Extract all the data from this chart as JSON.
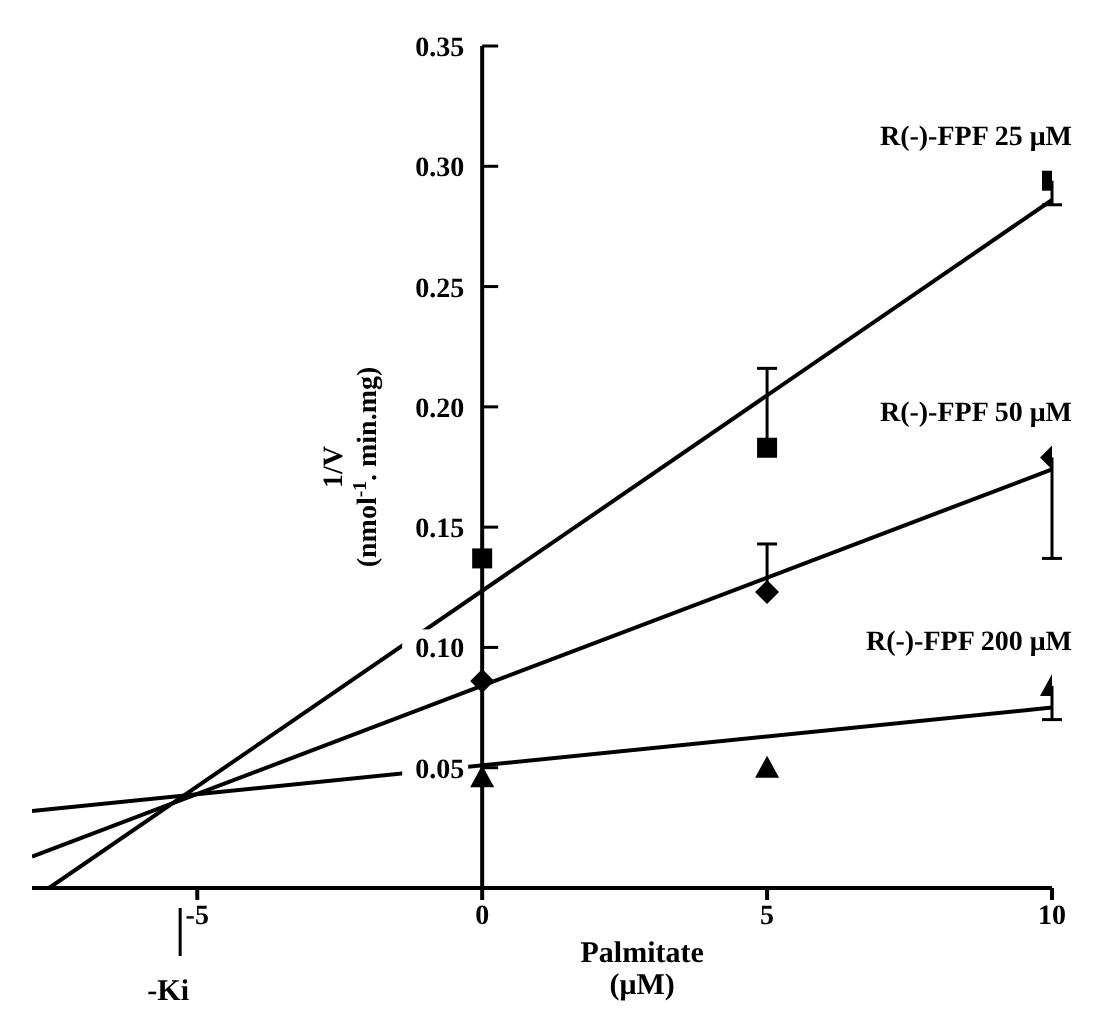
{
  "chart_data": {
    "type": "scatter",
    "xlabel": "Palmitate (μM)",
    "ylabel": "1/V (nmol$^{-1}$. min.mg)",
    "xlim": [
      -7.9,
      10
    ],
    "xticks": [
      -5,
      0,
      5,
      10
    ],
    "ylim": [
      0,
      0.35
    ],
    "yticks": [
      0.05,
      {
        "value": 0.1,
        "label": "0.10"
      },
      0.15,
      {
        "value": 0.2,
        "label": "0.20"
      },
      0.25,
      {
        "value": 0.3,
        "label": "0.30"
      },
      0.35
    ],
    "series": [
      {
        "name": "R(-)-FPF 25 μM",
        "color": "#000000",
        "marker": "square",
        "x": [
          0,
          5,
          10
        ],
        "values": [
          0.137,
          0.183,
          0.294
        ],
        "errors": [
          null,
          [
            0.183,
            0.216
          ],
          [
            0.284,
            0.294
          ]
        ]
      },
      {
        "name": "R(-)-FPF 50 μM",
        "color": "#000000",
        "marker": "diamond",
        "x": [
          0,
          5,
          10
        ],
        "values": [
          0.086,
          0.123,
          0.179
        ],
        "errors": [
          null,
          [
            0.123,
            0.143
          ],
          [
            0.137,
            0.179
          ]
        ]
      },
      {
        "name": "R(-)-FPF 200 μM",
        "color": "#000000",
        "marker": "triangle",
        "x": [
          0,
          5,
          10
        ],
        "values": [
          0.046,
          0.05,
          0.084
        ],
        "errors": [
          null,
          null,
          [
            0.07,
            0.084
          ]
        ]
      },
      {
        "type": "line",
        "color": "#000000",
        "marker": "none",
        "x": [
          -7.6,
          10
        ],
        "values": [
          0,
          0.286
        ]
      },
      {
        "type": "line",
        "color": "#000000",
        "marker": "none",
        "x": [
          -7.9,
          10
        ],
        "values": [
          0.013,
          0.174
        ]
      },
      {
        "type": "line",
        "color": "#000000",
        "marker": "none",
        "x": [
          -7.9,
          10
        ],
        "values": [
          0.032,
          0.075
        ]
      }
    ],
    "ref_lines": [
      {
        "axis": "x",
        "value": -5.3,
        "label": "-Ki"
      }
    ]
  }
}
